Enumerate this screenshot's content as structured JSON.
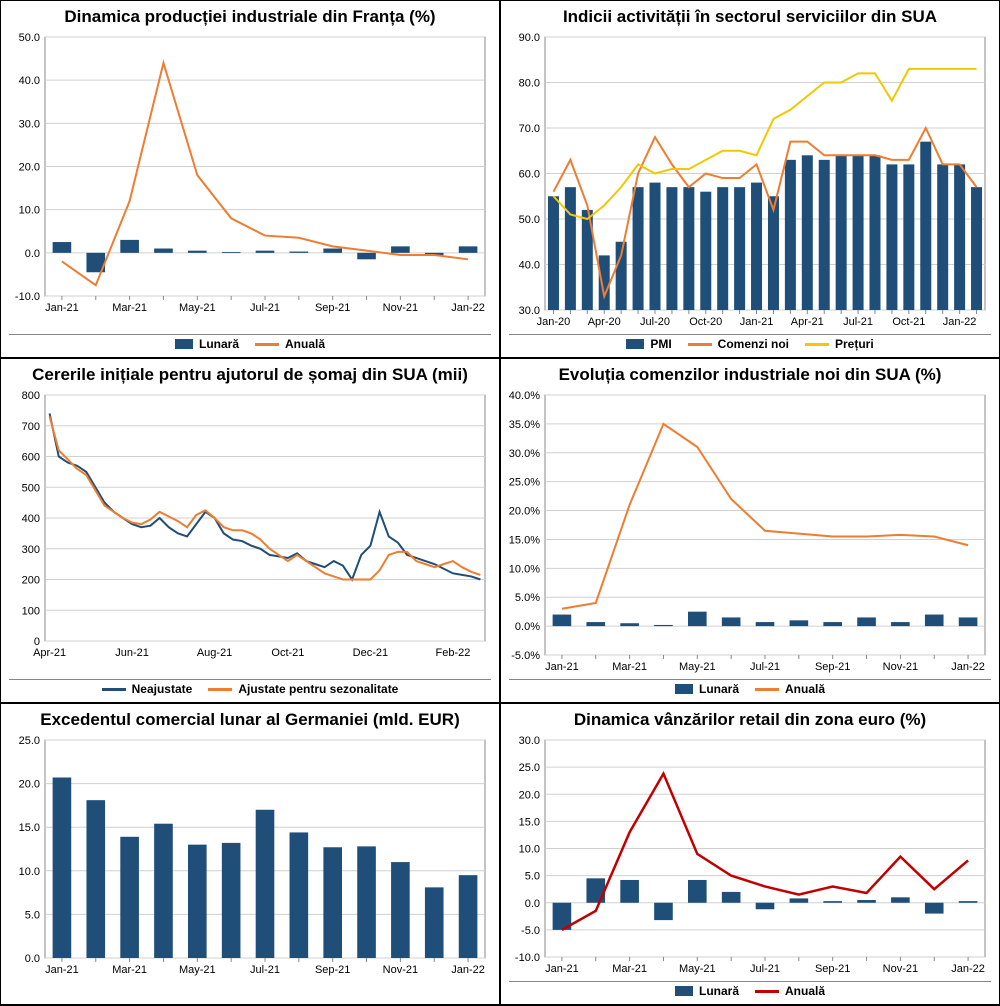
{
  "colors": {
    "bar_blue": "#1f4e79",
    "line_orange": "#ed7d31",
    "line_blue": "#1f4e79",
    "line_yellow": "#f2c800",
    "line_red": "#c00000",
    "grid": "#d0d0d0",
    "axis": "#888888",
    "bg": "#ffffff",
    "text": "#000000"
  },
  "charts": {
    "c1": {
      "title": "Dinamica producției industriale din Franța (%)",
      "type": "bar+line",
      "ylim": [
        -10,
        50
      ],
      "ytick_step": 10,
      "decimals": 1,
      "x_labels": [
        "Jan-21",
        "",
        "Mar-21",
        "",
        "May-21",
        "",
        "Jul-21",
        "",
        "Sep-21",
        "",
        "Nov-21",
        "",
        "Jan-22"
      ],
      "legend": [
        {
          "label": "Lunară",
          "type": "box",
          "color": "#1f4e79"
        },
        {
          "label": "Anuală",
          "type": "line",
          "color": "#ed7d31"
        }
      ],
      "bars": {
        "color": "#1f4e79",
        "values": [
          2.5,
          -4.5,
          3.0,
          1.0,
          0.5,
          0.2,
          0.5,
          0.3,
          1.0,
          -1.5,
          1.5,
          -0.5,
          1.5
        ]
      },
      "lines": [
        {
          "color": "#ed7d31",
          "width": 2,
          "values": [
            -2.0,
            -7.5,
            12.0,
            44.0,
            18.0,
            8.0,
            4.0,
            3.5,
            1.5,
            0.5,
            -0.5,
            -0.5,
            -1.5
          ]
        }
      ]
    },
    "c2": {
      "title": "Indicii activității în sectorul serviciilor din SUA",
      "type": "bar+line",
      "ylim": [
        30,
        90
      ],
      "ytick_step": 10,
      "decimals": 1,
      "x_labels": [
        "Jan-20",
        "",
        "",
        "Apr-20",
        "",
        "",
        "Jul-20",
        "",
        "",
        "Oct-20",
        "",
        "",
        "Jan-21",
        "",
        "",
        "Apr-21",
        "",
        "",
        "Jul-21",
        "",
        "",
        "Oct-21",
        "",
        "",
        "Jan-22",
        ""
      ],
      "legend": [
        {
          "label": "PMI",
          "type": "box",
          "color": "#1f4e79"
        },
        {
          "label": "Comenzi noi",
          "type": "line",
          "color": "#ed7d31"
        },
        {
          "label": "Prețuri",
          "type": "line",
          "color": "#f2c800"
        }
      ],
      "bars": {
        "color": "#1f4e79",
        "values": [
          55,
          57,
          52,
          42,
          45,
          57,
          58,
          57,
          57,
          56,
          57,
          57,
          58,
          55,
          63,
          64,
          63,
          64,
          64,
          64,
          62,
          62,
          67,
          62,
          62,
          57
        ]
      },
      "lines": [
        {
          "color": "#ed7d31",
          "width": 2,
          "values": [
            56,
            63,
            53,
            33,
            42,
            60,
            68,
            62,
            57,
            60,
            59,
            59,
            62,
            52,
            67,
            67,
            64,
            64,
            64,
            64,
            63,
            63,
            70,
            62,
            62,
            57
          ]
        },
        {
          "color": "#f2c800",
          "width": 2,
          "values": [
            55,
            51,
            50,
            53,
            57,
            62,
            60,
            61,
            61,
            63,
            65,
            65,
            64,
            72,
            74,
            77,
            80,
            80,
            82,
            82,
            76,
            83,
            83,
            83,
            83,
            83
          ]
        }
      ]
    },
    "c3": {
      "title": "Cererile inițiale pentru ajutorul de șomaj din SUA (mii)",
      "type": "lines",
      "ylim": [
        0,
        800
      ],
      "ytick_step": 100,
      "decimals": 0,
      "x_labels_sparse": {
        "count": 48,
        "labels": {
          "0": "Apr-21",
          "9": "Jun-21",
          "18": "Aug-21",
          "26": "Oct-21",
          "35": "Dec-21",
          "44": "Feb-22"
        }
      },
      "legend": [
        {
          "label": "Neajustate",
          "type": "line",
          "color": "#1f4e79"
        },
        {
          "label": "Ajustate pentru sezonalitate",
          "type": "line",
          "color": "#ed7d31"
        }
      ],
      "lines": [
        {
          "color": "#1f4e79",
          "width": 2,
          "values": [
            740,
            600,
            580,
            570,
            550,
            500,
            450,
            420,
            400,
            380,
            370,
            375,
            400,
            370,
            350,
            340,
            380,
            420,
            400,
            350,
            330,
            325,
            310,
            300,
            280,
            275,
            270,
            285,
            260,
            250,
            240,
            260,
            245,
            200,
            280,
            310,
            420,
            340,
            320,
            280,
            270,
            260,
            250,
            235,
            220,
            215,
            210,
            200
          ]
        },
        {
          "color": "#ed7d31",
          "width": 2,
          "values": [
            730,
            620,
            590,
            560,
            540,
            490,
            440,
            420,
            400,
            385,
            380,
            395,
            420,
            405,
            390,
            370,
            410,
            425,
            400,
            370,
            360,
            360,
            350,
            330,
            300,
            280,
            260,
            280,
            260,
            240,
            220,
            210,
            200,
            200,
            200,
            200,
            230,
            280,
            290,
            290,
            260,
            250,
            240,
            250,
            260,
            240,
            225,
            215
          ]
        }
      ]
    },
    "c4": {
      "title": "Evoluția comenzilor industriale noi din SUA (%)",
      "type": "bar+line",
      "ylim": [
        -5,
        40
      ],
      "ytick_step": 5,
      "decimals": 1,
      "percent": true,
      "x_labels": [
        "Jan-21",
        "",
        "Mar-21",
        "",
        "May-21",
        "",
        "Jul-21",
        "",
        "Sep-21",
        "",
        "Nov-21",
        "",
        "Jan-22"
      ],
      "legend": [
        {
          "label": "Lunară",
          "type": "box",
          "color": "#1f4e79"
        },
        {
          "label": "Anuală",
          "type": "line",
          "color": "#ed7d31"
        }
      ],
      "bars": {
        "color": "#1f4e79",
        "values": [
          2.0,
          0.7,
          0.5,
          0.2,
          2.5,
          1.5,
          0.7,
          1.0,
          0.7,
          1.5,
          0.7,
          2.0,
          1.5
        ]
      },
      "lines": [
        {
          "color": "#ed7d31",
          "width": 2,
          "values": [
            3.0,
            4.0,
            21.0,
            35.0,
            31.0,
            22.0,
            16.5,
            16.0,
            15.5,
            15.5,
            15.8,
            15.5,
            14.0
          ]
        }
      ]
    },
    "c5": {
      "title": "Excedentul comercial lunar al Germaniei (mld. EUR)",
      "type": "bars",
      "ylim": [
        0,
        25
      ],
      "ytick_step": 5,
      "decimals": 1,
      "x_labels": [
        "Jan-21",
        "",
        "Mar-21",
        "",
        "May-21",
        "",
        "Jul-21",
        "",
        "Sep-21",
        "",
        "Nov-21",
        "",
        "Jan-22"
      ],
      "legend": [],
      "bars": {
        "color": "#1f4e79",
        "values": [
          20.7,
          18.1,
          13.9,
          15.4,
          13.0,
          13.2,
          17.0,
          14.4,
          12.7,
          12.8,
          11.0,
          8.1,
          9.5
        ]
      }
    },
    "c6": {
      "title": "Dinamica vânzărilor retail din zona euro (%)",
      "type": "bar+line",
      "ylim": [
        -10,
        30
      ],
      "ytick_step": 5,
      "decimals": 1,
      "x_labels": [
        "Jan-21",
        "",
        "Mar-21",
        "",
        "May-21",
        "",
        "Jul-21",
        "",
        "Sep-21",
        "",
        "Nov-21",
        "",
        "Jan-22"
      ],
      "legend": [
        {
          "label": "Lunară",
          "type": "box",
          "color": "#1f4e79"
        },
        {
          "label": "Anuală",
          "type": "line",
          "color": "#c00000"
        }
      ],
      "bars": {
        "color": "#1f4e79",
        "values": [
          -5.0,
          4.5,
          4.2,
          -3.2,
          4.2,
          2.0,
          -1.2,
          0.8,
          0.3,
          0.5,
          1.0,
          -2.0,
          0.3
        ]
      },
      "lines": [
        {
          "color": "#c00000",
          "width": 2.5,
          "values": [
            -5.0,
            -1.5,
            13.0,
            23.8,
            9.0,
            5.0,
            3.0,
            1.5,
            3.0,
            1.8,
            8.5,
            2.5,
            7.8
          ]
        }
      ]
    }
  }
}
